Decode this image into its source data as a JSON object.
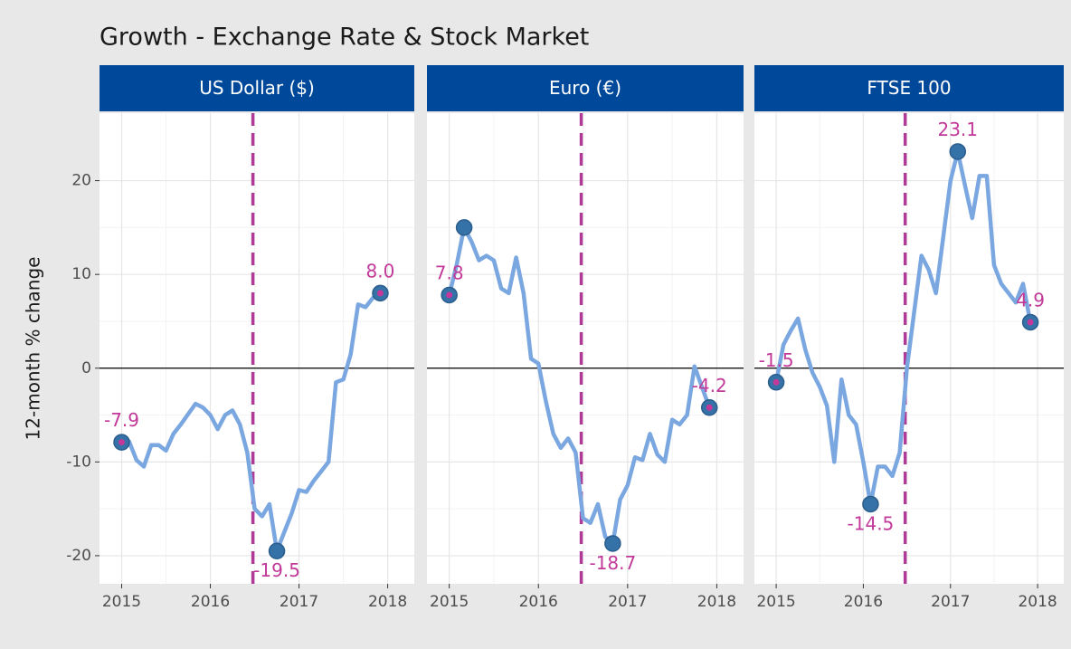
{
  "title": "Growth - Exchange Rate & Stock Market",
  "y_label": "12-month % change",
  "chart_data": [
    {
      "type": "line",
      "title": "US Dollar ($)",
      "color": "#7ba7e1",
      "vline": 2016.48,
      "grid": true,
      "xlim": [
        2014.75,
        2018.3
      ],
      "xticks": [
        2015,
        2016,
        2017,
        2018
      ],
      "ylim": [
        -23,
        27.2
      ],
      "yticks": [
        -20,
        -10,
        0,
        10,
        20
      ],
      "x": [
        2015,
        2015.083,
        2015.167,
        2015.25,
        2015.333,
        2015.417,
        2015.5,
        2015.583,
        2015.667,
        2015.75,
        2015.833,
        2015.917,
        2016,
        2016.083,
        2016.167,
        2016.25,
        2016.333,
        2016.417,
        2016.5,
        2016.583,
        2016.667,
        2016.75,
        2016.833,
        2016.917,
        2017,
        2017.083,
        2017.167,
        2017.25,
        2017.333,
        2017.417,
        2017.5,
        2017.583,
        2017.667,
        2017.75,
        2017.833,
        2017.917
      ],
      "values": [
        -7.9,
        -7.8,
        -9.8,
        -10.5,
        -8.2,
        -8.2,
        -8.8,
        -7.0,
        -6.0,
        -4.9,
        -3.8,
        -4.2,
        -5.0,
        -6.5,
        -5.0,
        -4.5,
        -6.0,
        -9.0,
        -15.0,
        -15.8,
        -14.5,
        -19.5,
        -17.5,
        -15.5,
        -13.0,
        -13.2,
        -12.0,
        -11.0,
        -10.0,
        -1.5,
        -1.2,
        1.5,
        6.8,
        6.5,
        7.5,
        8.0
      ],
      "value_labels": [
        "-7.9",
        null,
        null,
        null,
        null,
        null,
        null,
        null,
        null,
        null,
        null,
        null,
        null,
        null,
        null,
        null,
        null,
        null,
        null,
        null,
        null,
        "-19.5",
        null,
        null,
        null,
        null,
        null,
        null,
        null,
        null,
        null,
        null,
        null,
        null,
        null,
        "8.0"
      ]
    },
    {
      "type": "line",
      "title": "Euro (€)",
      "color": "#7ba7e1",
      "vline": 2016.48,
      "grid": true,
      "xlim": [
        2014.75,
        2018.3
      ],
      "xticks": [
        2015,
        2016,
        2017,
        2018
      ],
      "ylim": [
        -23,
        27.2
      ],
      "yticks": [
        -20,
        -10,
        0,
        10,
        20
      ],
      "x": [
        2015,
        2015.083,
        2015.167,
        2015.25,
        2015.333,
        2015.417,
        2015.5,
        2015.583,
        2015.667,
        2015.75,
        2015.833,
        2015.917,
        2016,
        2016.083,
        2016.167,
        2016.25,
        2016.333,
        2016.417,
        2016.5,
        2016.583,
        2016.667,
        2016.75,
        2016.833,
        2016.917,
        2017,
        2017.083,
        2017.167,
        2017.25,
        2017.333,
        2017.417,
        2017.5,
        2017.583,
        2017.667,
        2017.75,
        2017.833,
        2017.917
      ],
      "values": [
        7.8,
        11.0,
        15.0,
        13.5,
        11.5,
        12.0,
        11.5,
        8.5,
        8.0,
        11.8,
        8.0,
        1.0,
        0.5,
        -3.5,
        -7.0,
        -8.5,
        -7.5,
        -9.0,
        -16.0,
        -16.5,
        -14.5,
        -18.0,
        -18.7,
        -14.0,
        -12.5,
        -9.5,
        -9.8,
        -7.0,
        -9.2,
        -10.0,
        -5.5,
        -6.0,
        -5.0,
        0.2,
        -2.0,
        -4.2
      ],
      "value_labels": [
        "7.8",
        null,
        null,
        null,
        null,
        null,
        null,
        null,
        null,
        null,
        null,
        null,
        null,
        null,
        null,
        null,
        null,
        null,
        null,
        null,
        null,
        null,
        "-18.7",
        null,
        null,
        null,
        null,
        null,
        null,
        null,
        null,
        null,
        null,
        null,
        null,
        "-4.2"
      ]
    },
    {
      "type": "line",
      "title": "FTSE 100",
      "color": "#7ba7e1",
      "vline": 2016.48,
      "grid": true,
      "xlim": [
        2014.75,
        2018.3
      ],
      "xticks": [
        2015,
        2016,
        2017,
        2018
      ],
      "ylim": [
        -23,
        27.2
      ],
      "yticks": [
        -20,
        -10,
        0,
        10,
        20
      ],
      "x": [
        2015,
        2015.083,
        2015.167,
        2015.25,
        2015.333,
        2015.417,
        2015.5,
        2015.583,
        2015.667,
        2015.75,
        2015.833,
        2015.917,
        2016,
        2016.083,
        2016.167,
        2016.25,
        2016.333,
        2016.417,
        2016.5,
        2016.583,
        2016.667,
        2016.75,
        2016.833,
        2016.917,
        2017,
        2017.083,
        2017.167,
        2017.25,
        2017.333,
        2017.417,
        2017.5,
        2017.583,
        2017.667,
        2017.75,
        2017.833,
        2017.917
      ],
      "values": [
        -1.5,
        2.5,
        4.0,
        5.3,
        2.0,
        -0.5,
        -2.0,
        -4.0,
        -10.0,
        -1.2,
        -5.0,
        -6.0,
        -10.0,
        -14.5,
        -10.5,
        -10.5,
        -11.5,
        -9.0,
        0.0,
        6.0,
        12.0,
        10.5,
        8.0,
        14.0,
        20.0,
        23.1,
        19.5,
        16.0,
        20.5,
        20.5,
        11.0,
        9.0,
        8.0,
        7.0,
        9.0,
        4.9
      ],
      "value_labels": [
        "-1.5",
        null,
        null,
        null,
        null,
        null,
        null,
        null,
        null,
        null,
        null,
        null,
        null,
        "-14.5",
        null,
        null,
        null,
        null,
        null,
        null,
        null,
        null,
        null,
        null,
        null,
        "23.1",
        null,
        null,
        null,
        null,
        null,
        null,
        null,
        null,
        null,
        "4.9"
      ]
    }
  ]
}
